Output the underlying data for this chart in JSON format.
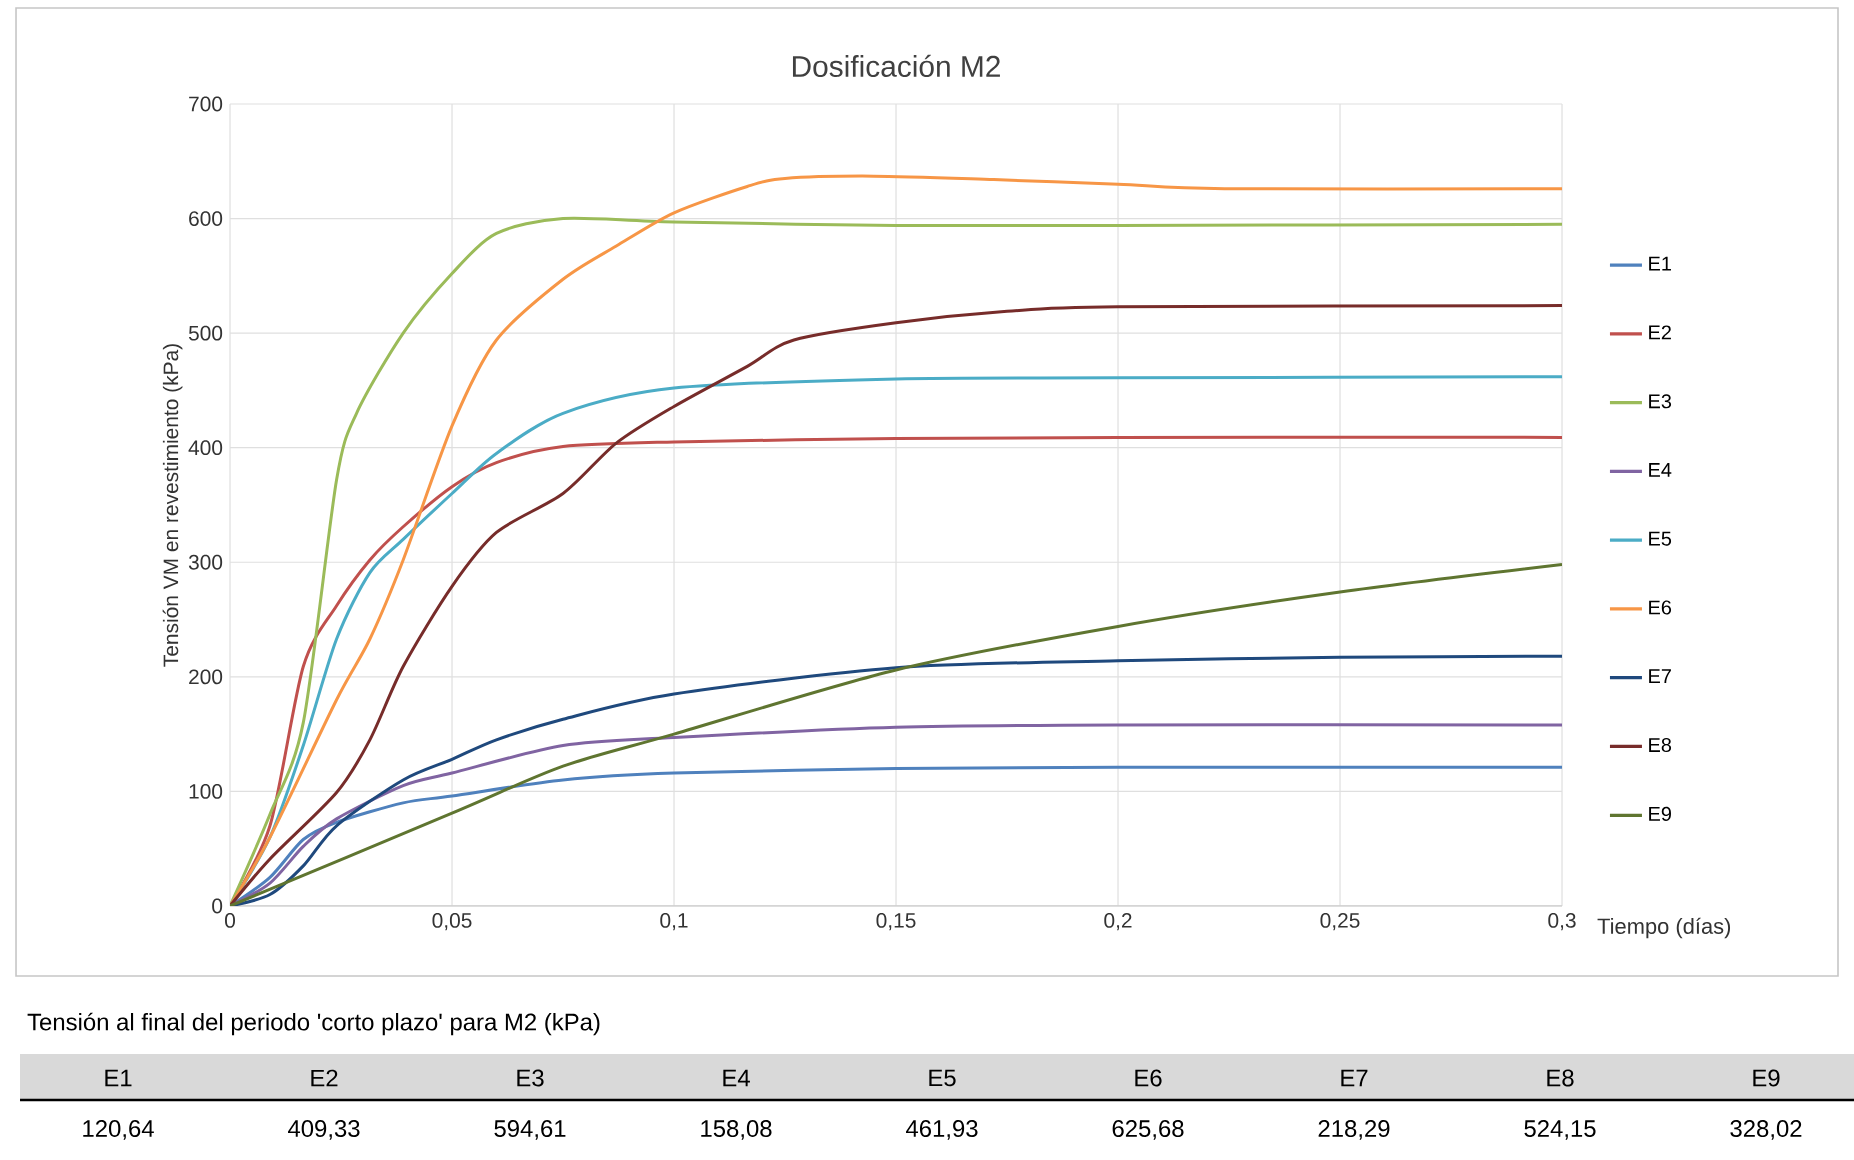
{
  "chart_data": {
    "type": "line",
    "title": "Dosificación M2",
    "xlabel": "Tiempo (días)",
    "ylabel": "Tensión VM en revestimiento (kPa)",
    "xlim": [
      0,
      0.3
    ],
    "ylim": [
      0,
      700
    ],
    "xticks": [
      0,
      {
        "value": 0.05,
        "label": "0,05"
      },
      {
        "value": 0.1,
        "label": "0,1"
      },
      {
        "value": 0.15,
        "label": "0,15"
      },
      {
        "value": 0.2,
        "label": "0,2"
      },
      {
        "value": 0.25,
        "label": "0,25"
      },
      {
        "value": 0.3,
        "label": "0,3"
      }
    ],
    "yticks": [
      0,
      100,
      200,
      300,
      400,
      500,
      600,
      700
    ],
    "grid": true,
    "legend": "right",
    "series": [
      {
        "name": "E1",
        "color": "#4f81bd",
        "x": [
          0,
          0.009,
          0.0165,
          0.024,
          0.039,
          0.05,
          0.075,
          0.1,
          0.15,
          0.2,
          0.3
        ],
        "values": [
          0,
          25,
          58,
          73,
          90,
          96,
          110,
          116,
          120,
          121,
          121
        ]
      },
      {
        "name": "E2",
        "color": "#c0504d",
        "x": [
          0,
          0.009,
          0.0165,
          0.024,
          0.0315,
          0.039,
          0.05,
          0.06,
          0.075,
          0.1,
          0.15,
          0.2,
          0.3
        ],
        "values": [
          0,
          70,
          209,
          262,
          302,
          331,
          366,
          387,
          401,
          405,
          408,
          409,
          409
        ]
      },
      {
        "name": "E3",
        "color": "#9bbb59",
        "x": [
          0,
          0.009,
          0.0165,
          0.024,
          0.0285,
          0.039,
          0.05,
          0.06,
          0.075,
          0.1,
          0.15,
          0.2,
          0.3
        ],
        "values": [
          0,
          80,
          160,
          372,
          430,
          500,
          552,
          587,
          600,
          597,
          594,
          594,
          595
        ]
      },
      {
        "name": "E4",
        "color": "#8064a2",
        "x": [
          0,
          0.009,
          0.0165,
          0.024,
          0.039,
          0.05,
          0.075,
          0.1,
          0.15,
          0.2,
          0.3
        ],
        "values": [
          0,
          20,
          52,
          76,
          105,
          116,
          140,
          147,
          156,
          158,
          158
        ]
      },
      {
        "name": "E5",
        "color": "#4bacc6",
        "x": [
          0,
          0.009,
          0.0165,
          0.024,
          0.0315,
          0.039,
          0.05,
          0.06,
          0.075,
          0.1,
          0.15,
          0.2,
          0.3
        ],
        "values": [
          0,
          60,
          140,
          233,
          291,
          320,
          360,
          395,
          430,
          452,
          460,
          461,
          462
        ]
      },
      {
        "name": "E6",
        "color": "#f79646",
        "x": [
          0,
          0.009,
          0.024,
          0.0315,
          0.039,
          0.05,
          0.06,
          0.075,
          0.087,
          0.1,
          0.1165,
          0.125,
          0.145,
          0.172,
          0.2,
          0.224,
          0.3
        ],
        "values": [
          0,
          60,
          180,
          233,
          302,
          419,
          494,
          547,
          576,
          605,
          628,
          635,
          637,
          634,
          630,
          626,
          626
        ]
      },
      {
        "name": "E7",
        "color": "#1f497d",
        "x": [
          0,
          0.009,
          0.0165,
          0.024,
          0.039,
          0.05,
          0.06,
          0.075,
          0.1,
          0.15,
          0.2,
          0.25,
          0.3
        ],
        "values": [
          0,
          10,
          35,
          70,
          110,
          128,
          145,
          163,
          185,
          208,
          214,
          217,
          218
        ]
      },
      {
        "name": "E8",
        "color": "#772c2a",
        "x": [
          0,
          0.009,
          0.024,
          0.0315,
          0.039,
          0.05,
          0.06,
          0.075,
          0.087,
          0.1,
          0.1165,
          0.127,
          0.15,
          0.175,
          0.2,
          0.3
        ],
        "values": [
          0,
          41,
          99,
          145,
          209,
          279,
          326,
          360,
          404,
          436,
          471,
          494,
          509,
          519,
          523,
          524
        ]
      },
      {
        "name": "E9",
        "color": "#5f7530",
        "x": [
          0,
          0.05,
          0.075,
          0.1,
          0.15,
          0.2,
          0.25,
          0.3
        ],
        "values": [
          0,
          81,
          122,
          150,
          206,
          244,
          274,
          298
        ]
      }
    ],
    "annotations": [
      "Tensión al final del periodo 'corto plazo' para M2 (kPa)",
      "120,64",
      "409,33",
      "594,61",
      "158,08",
      "461,93",
      "625,68",
      "218,29",
      "524,15",
      "328,02"
    ]
  }
}
